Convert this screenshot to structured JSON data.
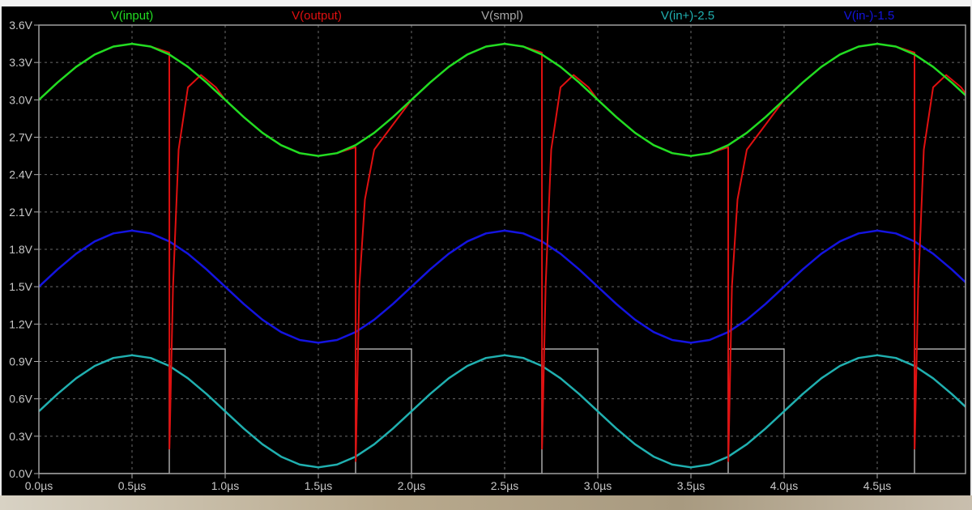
{
  "chart_data": {
    "type": "line",
    "title": "",
    "xlabel": "",
    "ylabel": "",
    "xlim": [
      0,
      4.97
    ],
    "ylim": [
      0,
      3.6
    ],
    "grid": true,
    "legend_placement": "top",
    "x_ticks": [
      "0.0µs",
      "0.5µs",
      "1.0µs",
      "1.5µs",
      "2.0µs",
      "2.5µs",
      "3.0µs",
      "3.5µs",
      "4.0µs",
      "4.5µs"
    ],
    "x_tick_values": [
      0,
      0.5,
      1.0,
      1.5,
      2.0,
      2.5,
      3.0,
      3.5,
      4.0,
      4.5
    ],
    "y_ticks": [
      "0.0V",
      "0.3V",
      "0.6V",
      "0.9V",
      "1.2V",
      "1.5V",
      "1.8V",
      "2.1V",
      "2.4V",
      "2.7V",
      "3.0V",
      "3.3V",
      "3.6V"
    ],
    "y_tick_values": [
      0,
      0.3,
      0.6,
      0.9,
      1.2,
      1.5,
      1.8,
      2.1,
      2.4,
      2.7,
      3.0,
      3.3,
      3.6
    ],
    "background": "#000000",
    "series": [
      {
        "name": "V(input)",
        "color": "#22dd22",
        "x": [
          0,
          0.1,
          0.2,
          0.3,
          0.4,
          0.5,
          0.6,
          0.7,
          0.8,
          0.9,
          1.0,
          1.1,
          1.2,
          1.3,
          1.4,
          1.5,
          1.6,
          1.7,
          1.8,
          1.9,
          2.0,
          2.1,
          2.2,
          2.3,
          2.4,
          2.5,
          2.6,
          2.7,
          2.8,
          2.9,
          3.0,
          3.1,
          3.2,
          3.3,
          3.4,
          3.5,
          3.6,
          3.7,
          3.8,
          3.9,
          4.0,
          4.1,
          4.2,
          4.3,
          4.4,
          4.5,
          4.6,
          4.7,
          4.8,
          4.9,
          5.0
        ],
        "y": [
          3.0,
          3.139,
          3.265,
          3.364,
          3.428,
          3.45,
          3.428,
          3.364,
          3.265,
          3.139,
          3.0,
          2.861,
          2.735,
          2.636,
          2.572,
          2.55,
          2.572,
          2.636,
          2.735,
          2.861,
          3.0,
          3.139,
          3.265,
          3.364,
          3.428,
          3.45,
          3.428,
          3.364,
          3.265,
          3.139,
          3.0,
          2.861,
          2.735,
          2.636,
          2.572,
          2.55,
          2.572,
          2.636,
          2.735,
          2.861,
          3.0,
          3.139,
          3.265,
          3.364,
          3.428,
          3.45,
          3.428,
          3.364,
          3.265,
          3.139,
          3.0
        ]
      },
      {
        "name": "V(output)",
        "color": "#e01010",
        "x": [
          0,
          0.1,
          0.2,
          0.3,
          0.4,
          0.5,
          0.6,
          0.7,
          0.701,
          0.72,
          0.75,
          0.8,
          0.87,
          0.95,
          1.0,
          1.1,
          1.2,
          1.3,
          1.4,
          1.5,
          1.6,
          1.7,
          1.701,
          1.72,
          1.75,
          1.8,
          1.9,
          2.0,
          2.1,
          2.2,
          2.3,
          2.4,
          2.5,
          2.6,
          2.7,
          2.701,
          2.72,
          2.75,
          2.8,
          2.87,
          2.95,
          3.0,
          3.1,
          3.2,
          3.3,
          3.4,
          3.5,
          3.6,
          3.7,
          3.701,
          3.72,
          3.75,
          3.8,
          3.9,
          4.0,
          4.1,
          4.2,
          4.3,
          4.4,
          4.5,
          4.6,
          4.7,
          4.701,
          4.72,
          4.75,
          4.8,
          4.87,
          4.95,
          5.0
        ],
        "y": [
          3.0,
          3.139,
          3.265,
          3.364,
          3.428,
          3.45,
          3.428,
          3.38,
          0.2,
          1.5,
          2.6,
          3.1,
          3.2,
          3.1,
          3.0,
          2.861,
          2.735,
          2.636,
          2.572,
          2.55,
          2.572,
          2.62,
          0.1,
          1.5,
          2.2,
          2.6,
          2.8,
          3.0,
          3.139,
          3.265,
          3.364,
          3.428,
          3.45,
          3.428,
          3.38,
          0.2,
          1.5,
          2.6,
          3.1,
          3.2,
          3.1,
          3.0,
          2.861,
          2.735,
          2.636,
          2.572,
          2.55,
          2.572,
          2.62,
          0.1,
          1.5,
          2.2,
          2.6,
          2.8,
          3.0,
          3.139,
          3.265,
          3.364,
          3.428,
          3.45,
          3.428,
          3.38,
          0.2,
          1.5,
          2.6,
          3.1,
          3.2,
          3.1,
          3.0
        ]
      },
      {
        "name": "V(smpl)",
        "color": "#a8a8a8",
        "x": [
          0,
          0.7,
          0.7,
          1.0,
          1.0,
          1.7,
          1.7,
          2.0,
          2.0,
          2.7,
          2.7,
          3.0,
          3.0,
          3.7,
          3.7,
          4.0,
          4.0,
          4.7,
          4.7,
          5.0
        ],
        "y": [
          0,
          0,
          1,
          1,
          0,
          0,
          1,
          1,
          0,
          0,
          1,
          1,
          0,
          0,
          1,
          1,
          0,
          0,
          1,
          1
        ]
      },
      {
        "name": "V(in+)-2.5",
        "color": "#20b0b0",
        "x": [
          0,
          0.1,
          0.2,
          0.3,
          0.4,
          0.5,
          0.6,
          0.7,
          0.8,
          0.9,
          1.0,
          1.1,
          1.2,
          1.3,
          1.4,
          1.5,
          1.6,
          1.7,
          1.8,
          1.9,
          2.0,
          2.1,
          2.2,
          2.3,
          2.4,
          2.5,
          2.6,
          2.7,
          2.8,
          2.9,
          3.0,
          3.1,
          3.2,
          3.3,
          3.4,
          3.5,
          3.6,
          3.7,
          3.8,
          3.9,
          4.0,
          4.1,
          4.2,
          4.3,
          4.4,
          4.5,
          4.6,
          4.7,
          4.8,
          4.9,
          5.0
        ],
        "y": [
          0.5,
          0.639,
          0.765,
          0.864,
          0.928,
          0.95,
          0.928,
          0.864,
          0.765,
          0.639,
          0.5,
          0.361,
          0.235,
          0.136,
          0.072,
          0.05,
          0.072,
          0.136,
          0.235,
          0.361,
          0.5,
          0.639,
          0.765,
          0.864,
          0.928,
          0.95,
          0.928,
          0.864,
          0.765,
          0.639,
          0.5,
          0.361,
          0.235,
          0.136,
          0.072,
          0.05,
          0.072,
          0.136,
          0.235,
          0.361,
          0.5,
          0.639,
          0.765,
          0.864,
          0.928,
          0.95,
          0.928,
          0.864,
          0.765,
          0.639,
          0.5
        ]
      },
      {
        "name": "V(in-)-1.5",
        "color": "#1414e0",
        "x": [
          0,
          0.1,
          0.2,
          0.3,
          0.4,
          0.5,
          0.6,
          0.7,
          0.8,
          0.9,
          1.0,
          1.1,
          1.2,
          1.3,
          1.4,
          1.5,
          1.6,
          1.7,
          1.8,
          1.9,
          2.0,
          2.1,
          2.2,
          2.3,
          2.4,
          2.5,
          2.6,
          2.7,
          2.8,
          2.9,
          3.0,
          3.1,
          3.2,
          3.3,
          3.4,
          3.5,
          3.6,
          3.7,
          3.8,
          3.9,
          4.0,
          4.1,
          4.2,
          4.3,
          4.4,
          4.5,
          4.6,
          4.7,
          4.8,
          4.9,
          5.0
        ],
        "y": [
          1.5,
          1.639,
          1.765,
          1.864,
          1.928,
          1.95,
          1.928,
          1.864,
          1.765,
          1.639,
          1.5,
          1.361,
          1.235,
          1.136,
          1.072,
          1.05,
          1.072,
          1.136,
          1.235,
          1.361,
          1.5,
          1.639,
          1.765,
          1.864,
          1.928,
          1.95,
          1.928,
          1.864,
          1.765,
          1.639,
          1.5,
          1.361,
          1.235,
          1.136,
          1.072,
          1.05,
          1.072,
          1.136,
          1.235,
          1.361,
          1.5,
          1.639,
          1.765,
          1.864,
          1.928,
          1.95,
          1.928,
          1.864,
          1.765,
          1.639,
          1.5
        ]
      }
    ]
  }
}
